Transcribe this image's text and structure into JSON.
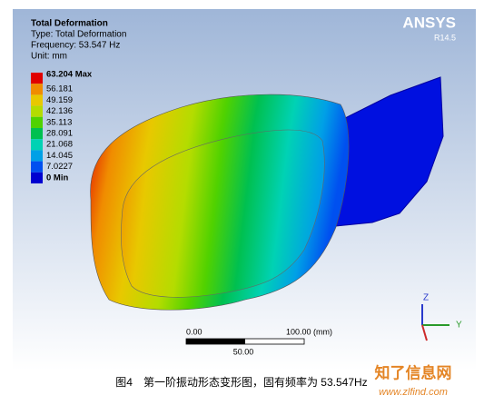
{
  "header": {
    "title": "Total Deformation",
    "type": "Type: Total Deformation",
    "frequency": "Frequency: 53.547 Hz",
    "unit": "Unit: mm"
  },
  "logo": {
    "name": "ANSYS",
    "version": "R14.5"
  },
  "legend": {
    "entries": [
      {
        "label": "63.204 Max",
        "color": "#e00000"
      },
      {
        "label": "56.181",
        "color": "#f08c00"
      },
      {
        "label": "49.159",
        "color": "#e8c800"
      },
      {
        "label": "42.136",
        "color": "#b4dc00"
      },
      {
        "label": "35.113",
        "color": "#50d200"
      },
      {
        "label": "28.091",
        "color": "#00c050"
      },
      {
        "label": "21.068",
        "color": "#00d2b4"
      },
      {
        "label": "14.045",
        "color": "#00a0e6"
      },
      {
        "label": "7.0227",
        "color": "#0050f0"
      },
      {
        "label": "0 Min",
        "color": "#0000d0"
      }
    ]
  },
  "scale_bar": {
    "left": "0.00",
    "right": "100.00 (mm)",
    "middle": "50.00"
  },
  "axes": {
    "z": "Z",
    "y": "Y"
  },
  "caption": "图4　第一阶振动形态变形图，固有频率为 53.547Hz",
  "watermark": {
    "name": "知了信息网",
    "url": "www.zlfind.com"
  }
}
